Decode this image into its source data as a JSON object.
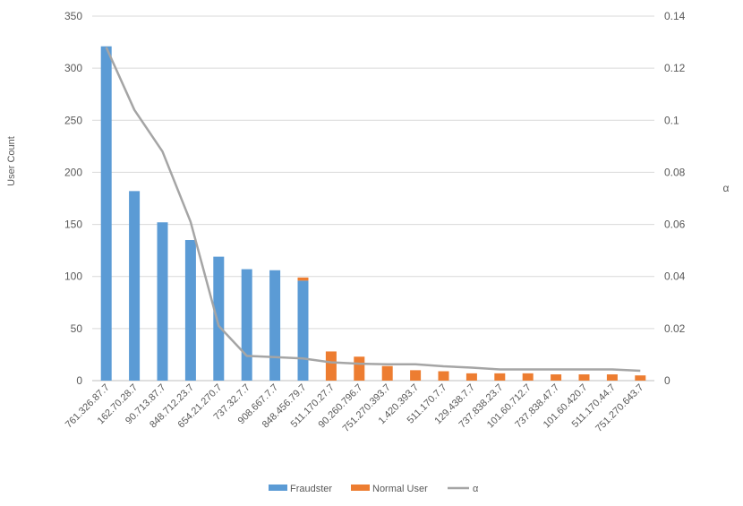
{
  "chart_data": {
    "type": "bar",
    "categories": [
      "761.326.87.7",
      "162.70.28.7",
      "90.713.87.7",
      "848.712.23.7",
      "654.21.270.7",
      "737.32.7.7",
      "908.667.7.7",
      "848.456.79.7",
      "511.170.27.7",
      "90.260.796.7",
      "751.270.393.7",
      "1.420.393.7",
      "511.170.7.7",
      "129.438.7.7",
      "737.838.23.7",
      "101.60.712.7",
      "737.838.47.7",
      "101.60.420.7",
      "511.170.44.7",
      "751.270.643.7"
    ],
    "series": [
      {
        "name": "Fraudster",
        "color": "#5B9BD5",
        "type": "bar",
        "stack": "users",
        "values": [
          321,
          182,
          152,
          135,
          119,
          107,
          106,
          96,
          0,
          0,
          0,
          0,
          0,
          0,
          0,
          0,
          0,
          0,
          0,
          0
        ]
      },
      {
        "name": "Normal User",
        "color": "#ED7D31",
        "type": "bar",
        "stack": "users",
        "values": [
          0,
          0,
          0,
          0,
          0,
          0,
          0,
          3,
          28,
          23,
          14,
          10,
          9,
          7,
          7,
          7,
          6,
          6,
          6,
          5
        ]
      },
      {
        "name": "α",
        "color": "#A5A5A5",
        "type": "line",
        "axis": "right",
        "values": [
          0.128,
          0.104,
          0.088,
          0.061,
          0.021,
          0.0095,
          0.009,
          0.0085,
          0.007,
          0.0065,
          0.0063,
          0.0063,
          0.0055,
          0.005,
          0.0043,
          0.0043,
          0.0043,
          0.0043,
          0.0043,
          0.0038
        ]
      }
    ],
    "ylabel": "User Count",
    "y2label": "α",
    "ylim": [
      0,
      350
    ],
    "y2lim": [
      0,
      0.14
    ],
    "yticks": [
      "0",
      "50",
      "100",
      "150",
      "200",
      "250",
      "300",
      "350"
    ],
    "y2ticks": [
      "0",
      "0.02",
      "0.04",
      "0.06",
      "0.08",
      "0.1",
      "0.12",
      "0.14"
    ],
    "grid": true,
    "legend_position": "bottom"
  }
}
